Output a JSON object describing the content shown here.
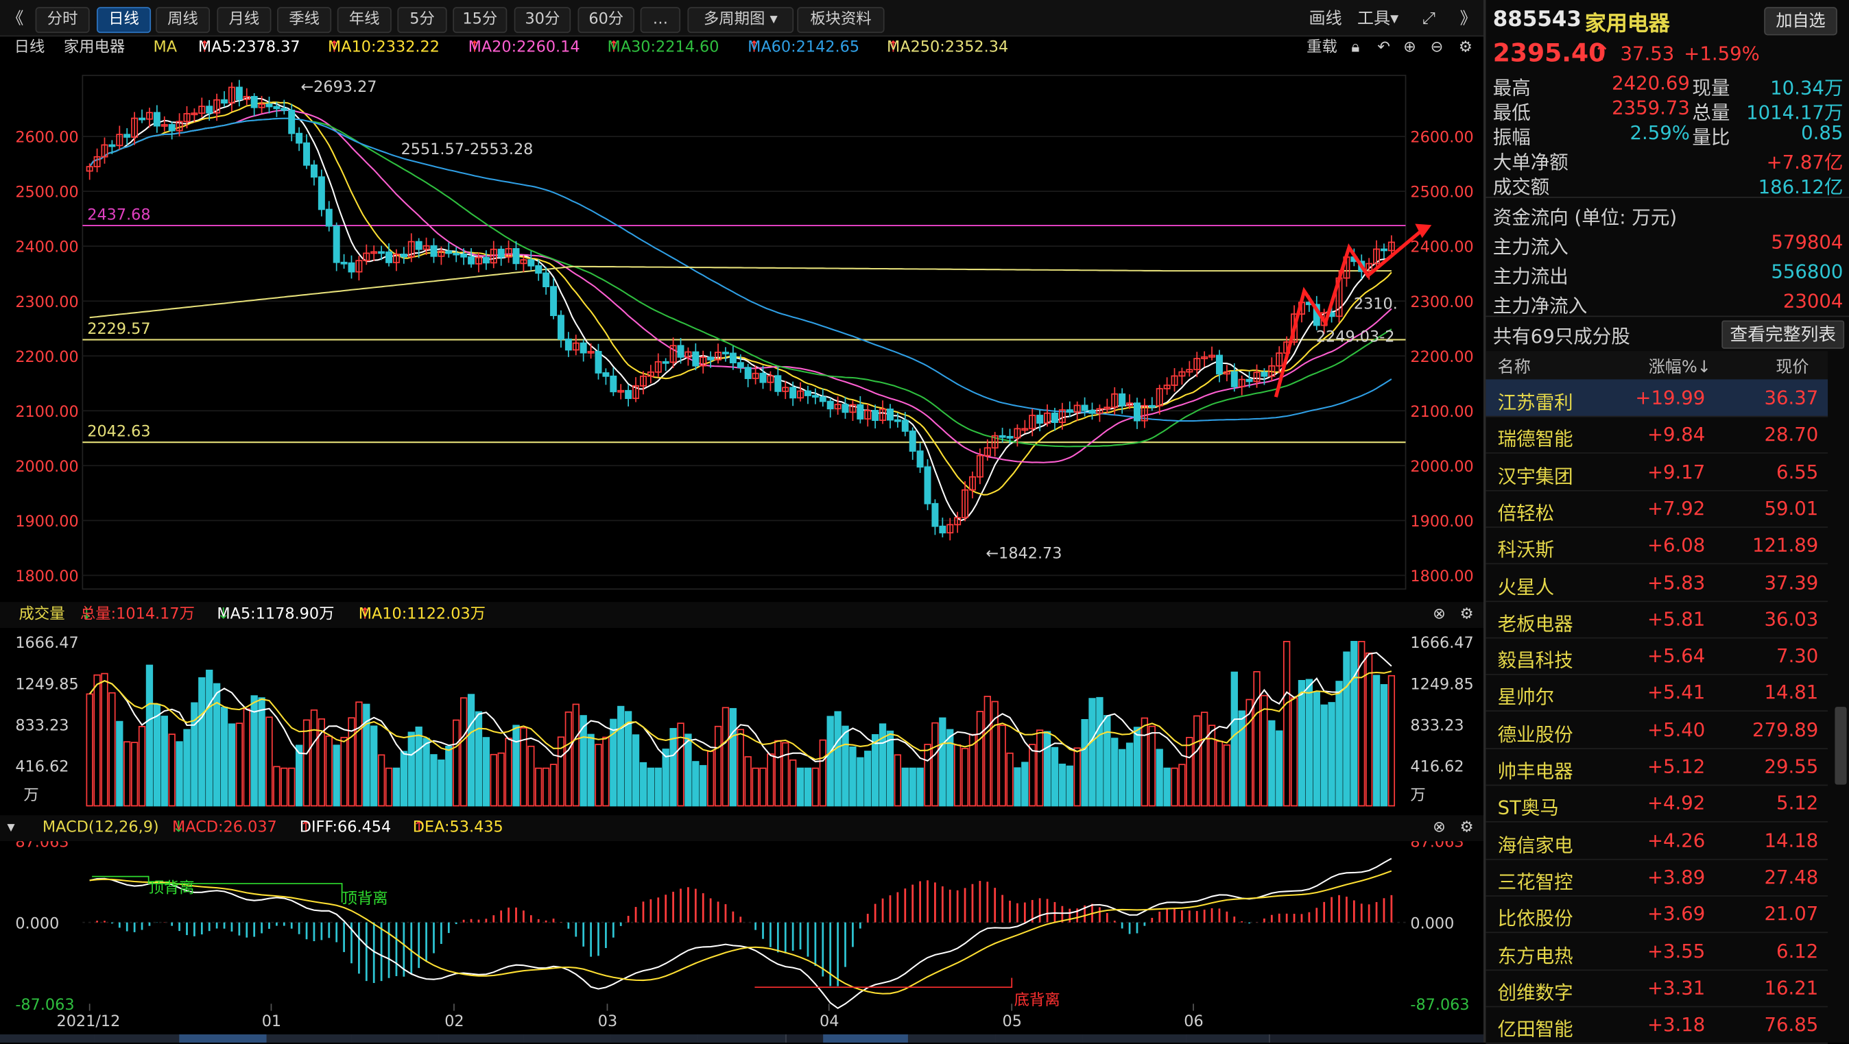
{
  "toolbar": {
    "collapse_glyph": "《",
    "tabs": [
      "分时",
      "日线",
      "周线",
      "月线",
      "季线",
      "年线",
      "5分",
      "15分",
      "30分",
      "60分",
      "…"
    ],
    "active_tab": "日线",
    "multi_period": "多周期图",
    "sector_info": "板块资料",
    "draw": "画线",
    "tools": "工具",
    "expand_glyph": "》"
  },
  "ma_line": {
    "period": "日线",
    "name": "家用电器",
    "ma": "MA",
    "ma5": "MA5:2378.37",
    "ma10": "MA10:2332.22",
    "ma20": "MA20:2260.14",
    "ma30": "MA30:2214.60",
    "ma60": "MA60:2142.65",
    "ma250": "MA250:2352.34",
    "rehab": "重载"
  },
  "colors": {
    "up": "#ff3b3b",
    "down": "#2ec5d3",
    "ma5": "#ffffff",
    "ma10": "#ffe033",
    "ma20": "#ff5fd2",
    "ma30": "#2fbf3f",
    "ma60": "#2f9fe5",
    "ma250": "#e6e07a",
    "accent": "#2d74c0"
  },
  "main_chart": {
    "y_ticks": [
      "2600.00",
      "2500.00",
      "2400.00",
      "2300.00",
      "2200.00",
      "2100.00",
      "2000.00",
      "1900.00",
      "1800.00"
    ],
    "hlines": [
      {
        "label": "2437.68",
        "color": "#e040c0"
      },
      {
        "label": "2229.57",
        "color": "#e6e07a"
      },
      {
        "label": "2042.63",
        "color": "#e6e07a"
      }
    ],
    "annotations": {
      "high": "←2693.27",
      "range": "2551.57-2553.28",
      "low": "←1842.73",
      "near_price": "2310.",
      "near_price2": "2249.03-2"
    }
  },
  "volume_panel": {
    "title": "成交量",
    "total": "总量:1014.17万",
    "ma5": "MA5:1178.90万",
    "ma10": "MA10:1122.03万",
    "y_ticks": [
      "1666.47",
      "1249.85",
      "833.23",
      "416.62"
    ],
    "unit": "万"
  },
  "macd_panel": {
    "title": "MACD(12,26,9)",
    "macd": "MACD:26.037",
    "diff": "DIFF:66.454",
    "dea": "DEA:53.435",
    "y_ticks": [
      "87.063",
      "0.000",
      "-87.063"
    ],
    "labels": {
      "top1": "顶背离",
      "top2": "顶背离",
      "bottom": "底背离"
    }
  },
  "x_axis": {
    "labels": [
      "2021/12",
      "01",
      "02",
      "03",
      "04",
      "05",
      "06"
    ]
  },
  "quote": {
    "code": "885543",
    "name": "家用电器",
    "add_button": "加自选",
    "price": "2395.40",
    "change": "37.53",
    "change_pct": "+1.59%",
    "stats": [
      {
        "label": "最高",
        "value": "2420.69",
        "label2": "现量",
        "value2": "10.34万"
      },
      {
        "label": "最低",
        "value": "2359.73",
        "label2": "总量",
        "value2": "1014.17万"
      },
      {
        "label": "振幅",
        "value": "2.59%",
        "label2": "量比",
        "value2": "0.85"
      },
      {
        "label": "大单净额",
        "value": "+7.87亿"
      },
      {
        "label": "成交额",
        "value": "186.12亿"
      }
    ],
    "flow_title": "资金流向 (单位: 万元)",
    "flows": [
      {
        "label": "主力流入",
        "value": "579804"
      },
      {
        "label": "主力流出",
        "value": "556800"
      },
      {
        "label": "主力净流入",
        "value": "23004"
      }
    ],
    "constituents_title": "共有69只成分股",
    "full_list_button": "查看完整列表",
    "columns": [
      "名称",
      "涨幅%↓",
      "现价"
    ]
  },
  "stocks": [
    {
      "name": "江苏雷利",
      "pct": "+19.99",
      "price": "36.37"
    },
    {
      "name": "瑞德智能",
      "pct": "+9.84",
      "price": "28.70"
    },
    {
      "name": "汉宇集团",
      "pct": "+9.17",
      "price": "6.55"
    },
    {
      "name": "倍轻松",
      "pct": "+7.92",
      "price": "59.01"
    },
    {
      "name": "科沃斯",
      "pct": "+6.08",
      "price": "121.89"
    },
    {
      "name": "火星人",
      "pct": "+5.83",
      "price": "37.39"
    },
    {
      "name": "老板电器",
      "pct": "+5.81",
      "price": "36.03"
    },
    {
      "name": "毅昌科技",
      "pct": "+5.64",
      "price": "7.30"
    },
    {
      "name": "星帅尔",
      "pct": "+5.41",
      "price": "14.81"
    },
    {
      "name": "德业股份",
      "pct": "+5.40",
      "price": "279.89"
    },
    {
      "name": "帅丰电器",
      "pct": "+5.12",
      "price": "29.55"
    },
    {
      "name": "ST奥马",
      "pct": "+4.92",
      "price": "5.12"
    },
    {
      "name": "海信家电",
      "pct": "+4.26",
      "price": "14.18"
    },
    {
      "name": "三花智控",
      "pct": "+3.89",
      "price": "27.48"
    },
    {
      "name": "比依股份",
      "pct": "+3.69",
      "price": "21.07"
    },
    {
      "name": "东方电热",
      "pct": "+3.55",
      "price": "6.12"
    },
    {
      "name": "创维数字",
      "pct": "+3.31",
      "price": "16.21"
    },
    {
      "name": "亿田智能",
      "pct": "+3.18",
      "price": "76.85"
    }
  ]
}
